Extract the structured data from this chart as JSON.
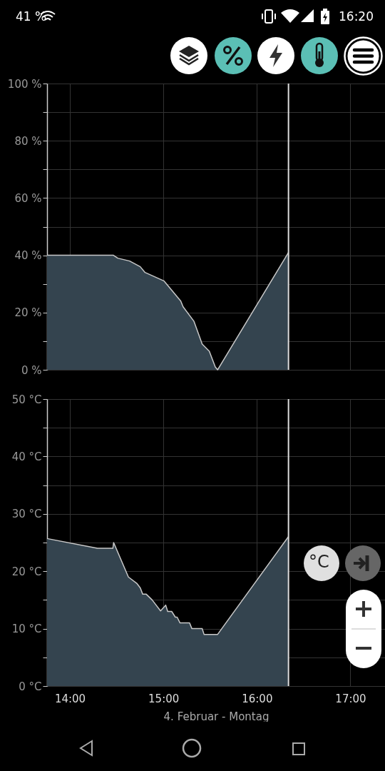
{
  "chart_data": [
    {
      "type": "area",
      "x": [
        13.756,
        14.466,
        14.512,
        14.639,
        14.753,
        14.804,
        15.008,
        15.186,
        15.211,
        15.326,
        15.415,
        15.491,
        15.555,
        15.58,
        16.338
      ],
      "series": [
        {
          "color": "#34444f",
          "values": [
            40,
            40,
            39,
            38,
            36,
            34,
            31,
            24,
            22,
            17,
            9,
            6.5,
            1,
            0,
            41
          ]
        }
      ],
      "xlim": [
        13.756,
        17.37
      ],
      "ylim": [
        0,
        100
      ],
      "xticks": [
        {
          "value": 14,
          "label": null
        },
        {
          "value": 15,
          "label": null
        },
        {
          "value": 16,
          "label": null
        },
        {
          "value": 17,
          "label": null
        }
      ],
      "yticks": [
        {
          "value": 0,
          "label": "0 %"
        },
        {
          "value": 10,
          "label": null
        },
        {
          "value": 20,
          "label": "20 %"
        },
        {
          "value": 30,
          "label": null
        },
        {
          "value": 40,
          "label": "40 %"
        },
        {
          "value": 50,
          "label": null
        },
        {
          "value": 60,
          "label": "60 %"
        },
        {
          "value": 70,
          "label": null
        },
        {
          "value": 80,
          "label": "80 %"
        },
        {
          "value": 90,
          "label": null
        },
        {
          "value": 100,
          "label": "100 %"
        }
      ],
      "grid": true,
      "tick_labels": "y",
      "ref_lines": [
        {
          "axis": "x",
          "value": 16.338,
          "color": "#dddddd"
        }
      ],
      "annotations": [
        "41 %",
        "16:20"
      ]
    },
    {
      "type": "area",
      "x": [
        13.756,
        14.295,
        14.46,
        14.468,
        14.626,
        14.715,
        14.753,
        14.779,
        14.817,
        14.88,
        14.97,
        15.025,
        15.046,
        15.089,
        15.128,
        15.147,
        15.178,
        15.28,
        15.305,
        15.415,
        15.435,
        15.58,
        16.336
      ],
      "series": [
        {
          "color": "#34444f",
          "values": [
            25.7,
            24,
            24,
            25,
            19,
            17.9,
            17.1,
            16,
            16,
            15,
            13.1,
            14.1,
            13,
            13,
            12,
            12,
            11,
            11,
            10,
            10,
            9,
            9,
            26
          ]
        }
      ],
      "xlim": [
        13.756,
        17.37
      ],
      "ylim": [
        0,
        50
      ],
      "xticks": [
        {
          "value": 14,
          "label": "14:00"
        },
        {
          "value": 15,
          "label": "15:00"
        },
        {
          "value": 16,
          "label": "16:00"
        },
        {
          "value": 17,
          "label": "17:00"
        }
      ],
      "yticks": [
        {
          "value": 0,
          "label": "0 °C"
        },
        {
          "value": 5,
          "label": null
        },
        {
          "value": 10,
          "label": "10 °C"
        },
        {
          "value": 15,
          "label": null
        },
        {
          "value": 20,
          "label": "20 °C"
        },
        {
          "value": 25,
          "label": null
        },
        {
          "value": 30,
          "label": "30 °C"
        },
        {
          "value": 35,
          "label": null
        },
        {
          "value": 40,
          "label": "40 °C"
        },
        {
          "value": 45,
          "label": null
        },
        {
          "value": 50,
          "label": "50 °C"
        }
      ],
      "grid": true,
      "xlabel": "4. Februar - Montag",
      "ref_lines": [
        {
          "axis": "x",
          "value": 16.338,
          "color": "#dddddd"
        }
      ],
      "annotations": [
        "°C"
      ]
    }
  ]
}
